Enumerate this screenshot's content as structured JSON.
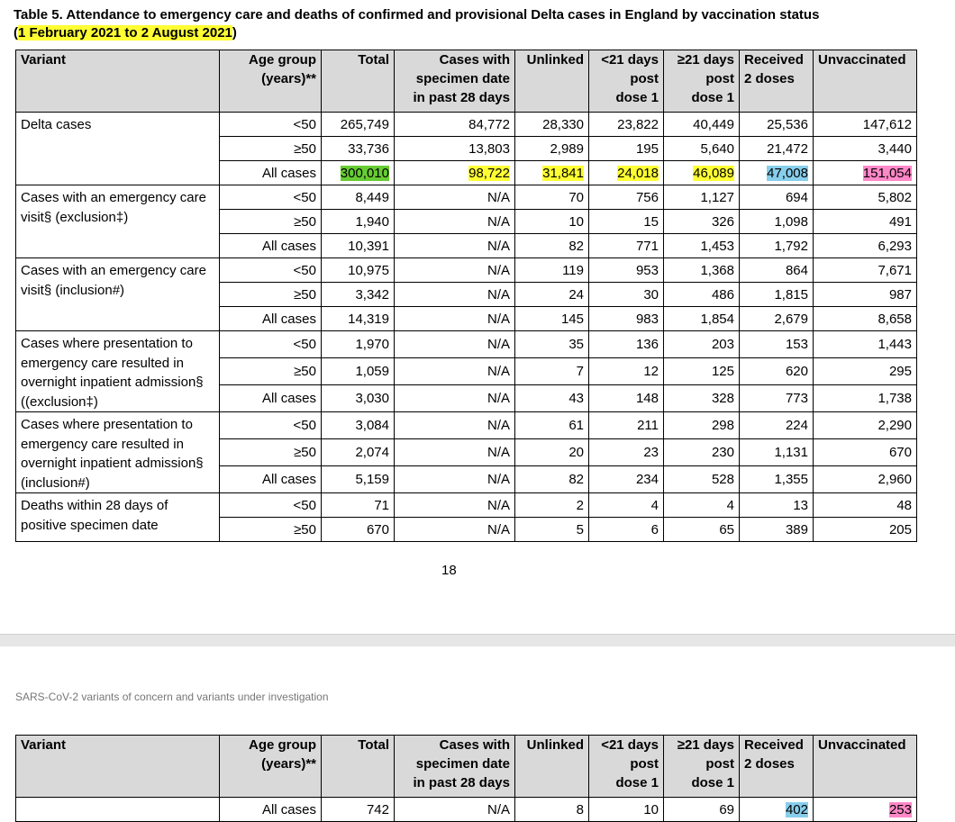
{
  "caption": {
    "line1": "Table 5. Attendance to emergency care and deaths of confirmed and provisional Delta cases in England by vaccination status",
    "open_paren": "(",
    "date_range": "1 February 2021 to 2 August 2021",
    "close_paren": ")"
  },
  "headers": {
    "variant": "Variant",
    "age_1": "Age group",
    "age_2": "(years)**",
    "total": "Total",
    "spec_1": "Cases with",
    "spec_2": "specimen date",
    "spec_3": "in past 28 days",
    "unlinked": "Unlinked",
    "lt21_1": "<21 days",
    "lt21_2": "post",
    "lt21_3": "dose 1",
    "ge21_1": "≥21 days",
    "ge21_2": "post",
    "ge21_3": "dose 1",
    "two_1": "Received",
    "two_2": "2 doses",
    "unvacc": "Unvaccinated"
  },
  "groups": [
    {
      "variant": "Delta cases",
      "rows": [
        {
          "age": "<50",
          "total": "265,749",
          "spec": "84,772",
          "unlinked": "28,330",
          "lt21": "23,822",
          "ge21": "40,449",
          "two": "25,536",
          "unvacc": "147,612"
        },
        {
          "age": "≥50",
          "total": "33,736",
          "spec": "13,803",
          "unlinked": "2,989",
          "lt21": "195",
          "ge21": "5,640",
          "two": "21,472",
          "unvacc": "3,440"
        },
        {
          "age": "All cases",
          "total": "300,010",
          "spec": "98,722",
          "unlinked": "31,841",
          "lt21": "24,018",
          "ge21": "46,089",
          "two": "47,008",
          "unvacc": "151,054"
        }
      ]
    },
    {
      "variant": "Cases with an emergency care visit§ (exclusion‡)",
      "rows": [
        {
          "age": "<50",
          "total": "8,449",
          "spec": "N/A",
          "unlinked": "70",
          "lt21": "756",
          "ge21": "1,127",
          "two": "694",
          "unvacc": "5,802"
        },
        {
          "age": "≥50",
          "total": "1,940",
          "spec": "N/A",
          "unlinked": "10",
          "lt21": "15",
          "ge21": "326",
          "two": "1,098",
          "unvacc": "491"
        },
        {
          "age": "All cases",
          "total": "10,391",
          "spec": "N/A",
          "unlinked": "82",
          "lt21": "771",
          "ge21": "1,453",
          "two": "1,792",
          "unvacc": "6,293"
        }
      ]
    },
    {
      "variant": "Cases with an emergency care visit§ (inclusion#)",
      "rows": [
        {
          "age": "<50",
          "total": "10,975",
          "spec": "N/A",
          "unlinked": "119",
          "lt21": "953",
          "ge21": "1,368",
          "two": "864",
          "unvacc": "7,671"
        },
        {
          "age": "≥50",
          "total": "3,342",
          "spec": "N/A",
          "unlinked": "24",
          "lt21": "30",
          "ge21": "486",
          "two": "1,815",
          "unvacc": "987"
        },
        {
          "age": "All cases",
          "total": "14,319",
          "spec": "N/A",
          "unlinked": "145",
          "lt21": "983",
          "ge21": "1,854",
          "two": "2,679",
          "unvacc": "8,658"
        }
      ]
    },
    {
      "variant": "Cases where presentation to emergency care resulted in overnight inpatient admission§ ((exclusion‡)",
      "rows": [
        {
          "age": "<50",
          "total": "1,970",
          "spec": "N/A",
          "unlinked": "35",
          "lt21": "136",
          "ge21": "203",
          "two": "153",
          "unvacc": "1,443"
        },
        {
          "age": "≥50",
          "total": "1,059",
          "spec": "N/A",
          "unlinked": "7",
          "lt21": "12",
          "ge21": "125",
          "two": "620",
          "unvacc": "295"
        },
        {
          "age": "All cases",
          "total": "3,030",
          "spec": "N/A",
          "unlinked": "43",
          "lt21": "148",
          "ge21": "328",
          "two": "773",
          "unvacc": "1,738"
        }
      ]
    },
    {
      "variant": "Cases where presentation to emergency care resulted in overnight inpatient admission§ (inclusion#)",
      "rows": [
        {
          "age": "<50",
          "total": "3,084",
          "spec": "N/A",
          "unlinked": "61",
          "lt21": "211",
          "ge21": "298",
          "two": "224",
          "unvacc": "2,290"
        },
        {
          "age": "≥50",
          "total": "2,074",
          "spec": "N/A",
          "unlinked": "20",
          "lt21": "23",
          "ge21": "230",
          "two": "1,131",
          "unvacc": "670"
        },
        {
          "age": "All cases",
          "total": "5,159",
          "spec": "N/A",
          "unlinked": "82",
          "lt21": "234",
          "ge21": "528",
          "two": "1,355",
          "unvacc": "2,960"
        }
      ]
    },
    {
      "variant": "Deaths within 28 days of positive specimen date",
      "rows": [
        {
          "age": "<50",
          "total": "71",
          "spec": "N/A",
          "unlinked": "2",
          "lt21": "4",
          "ge21": "4",
          "two": "13",
          "unvacc": "48"
        },
        {
          "age": "≥50",
          "total": "670",
          "spec": "N/A",
          "unlinked": "5",
          "lt21": "6",
          "ge21": "65",
          "two": "389",
          "unvacc": "205"
        }
      ]
    }
  ],
  "page_number": "18",
  "running_header": "SARS-CoV-2 variants of concern and variants under investigation",
  "table2_row": {
    "age": "All cases",
    "total": "742",
    "spec": "N/A",
    "unlinked": "8",
    "lt21": "10",
    "ge21": "69",
    "two": "402",
    "unvacc": "253"
  },
  "highlight_colors": {
    "green": "#66cc33",
    "yellow": "#ffff33",
    "blue": "#87ceeb",
    "pink": "#ff88c8"
  }
}
